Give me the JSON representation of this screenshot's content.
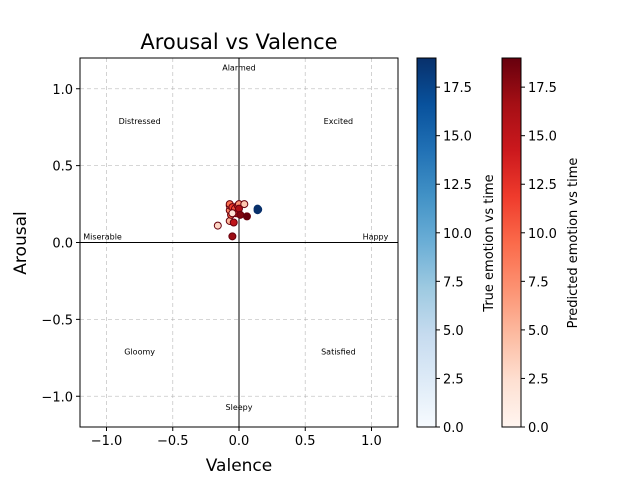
{
  "chart_data": {
    "type": "scatter",
    "title": "Arousal vs Valence",
    "xlabel": "Valence",
    "ylabel": "Arousal",
    "xlim": [
      -1.2,
      1.2
    ],
    "ylim": [
      -1.2,
      1.2
    ],
    "xticks": [
      -1.0,
      -0.5,
      0.0,
      0.5,
      1.0
    ],
    "yticks": [
      -1.0,
      -0.5,
      0.0,
      0.5,
      1.0
    ],
    "xtick_labels": [
      "−1.0",
      "−0.5",
      "0.0",
      "0.5",
      "1.0"
    ],
    "ytick_labels": [
      "−1.0",
      "−0.5",
      "0.0",
      "0.5",
      "1.0"
    ],
    "grid": true,
    "reference_lines": {
      "x": 0,
      "y": 0
    },
    "quadrant_labels": [
      {
        "text": "Alarmed",
        "x": 0.0,
        "y": 1.12
      },
      {
        "text": "Distressed",
        "x": -0.75,
        "y": 0.77
      },
      {
        "text": "Excited",
        "x": 0.75,
        "y": 0.77
      },
      {
        "text": "Miserable",
        "x": -1.03,
        "y": 0.02
      },
      {
        "text": "Happy",
        "x": 1.03,
        "y": 0.02
      },
      {
        "text": "Gloomy",
        "x": -0.75,
        "y": -0.73
      },
      {
        "text": "Satisfied",
        "x": 0.75,
        "y": -0.73
      },
      {
        "text": "Sleepy",
        "x": 0.0,
        "y": -1.09
      }
    ],
    "series": [
      {
        "colormap": "Blues",
        "points": [
          {
            "x": 0.14,
            "y": 0.21,
            "t": 19
          },
          {
            "x": 0.14,
            "y": 0.22,
            "t": 19
          },
          {
            "x": 0.145,
            "y": 0.215,
            "t": 19
          }
        ]
      },
      {
        "colormap": "Reds",
        "points": [
          {
            "x": -0.16,
            "y": 0.11,
            "t": 3
          },
          {
            "x": -0.07,
            "y": 0.14,
            "t": 5
          },
          {
            "x": -0.05,
            "y": 0.04,
            "t": 17
          },
          {
            "x": -0.04,
            "y": 0.13,
            "t": 15
          },
          {
            "x": -0.06,
            "y": 0.18,
            "t": 10
          },
          {
            "x": -0.07,
            "y": 0.21,
            "t": 8
          },
          {
            "x": -0.07,
            "y": 0.24,
            "t": 6
          },
          {
            "x": -0.07,
            "y": 0.25,
            "t": 9
          },
          {
            "x": -0.05,
            "y": 0.23,
            "t": 12
          },
          {
            "x": -0.03,
            "y": 0.22,
            "t": 11
          },
          {
            "x": -0.02,
            "y": 0.19,
            "t": 14
          },
          {
            "x": -0.01,
            "y": 0.24,
            "t": 13
          },
          {
            "x": 0.0,
            "y": 0.25,
            "t": 7
          },
          {
            "x": 0.0,
            "y": 0.22,
            "t": 16
          },
          {
            "x": 0.01,
            "y": 0.18,
            "t": 18
          },
          {
            "x": 0.04,
            "y": 0.25,
            "t": 4
          },
          {
            "x": 0.06,
            "y": 0.17,
            "t": 19
          },
          {
            "x": -0.05,
            "y": 0.19,
            "t": 2
          }
        ]
      }
    ],
    "colorbars": [
      {
        "label": "True emotion vs time",
        "colormap": "Blues",
        "range": [
          0,
          19
        ],
        "ticks": [
          0.0,
          2.5,
          5.0,
          7.5,
          10.0,
          12.5,
          15.0,
          17.5
        ],
        "tick_labels": [
          "0.0",
          "2.5",
          "5.0",
          "7.5",
          "10.0",
          "12.5",
          "15.0",
          "17.5"
        ]
      },
      {
        "label": "Predicted emotion vs time",
        "colormap": "Reds",
        "range": [
          0,
          19
        ],
        "ticks": [
          0.0,
          2.5,
          5.0,
          7.5,
          10.0,
          12.5,
          15.0,
          17.5
        ],
        "tick_labels": [
          "0.0",
          "2.5",
          "5.0",
          "7.5",
          "10.0",
          "12.5",
          "15.0",
          "17.5"
        ]
      }
    ]
  }
}
